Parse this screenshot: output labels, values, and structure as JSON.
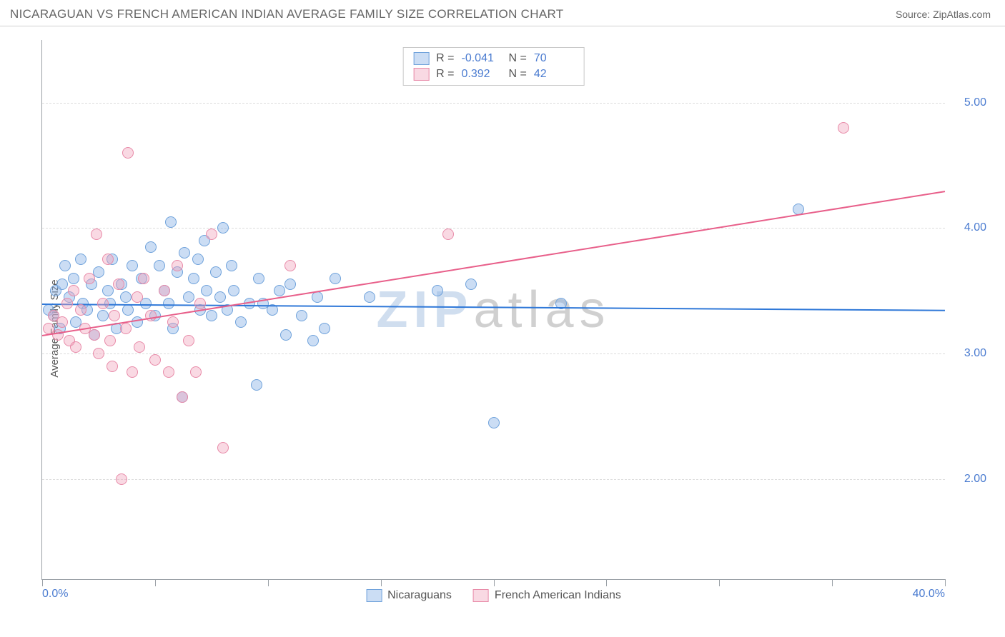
{
  "header": {
    "title": "NICARAGUAN VS FRENCH AMERICAN INDIAN AVERAGE FAMILY SIZE CORRELATION CHART",
    "source": "Source: ZipAtlas.com"
  },
  "chart": {
    "type": "scatter",
    "ylabel": "Average Family Size",
    "label_fontsize": 15,
    "xlim": [
      0,
      40
    ],
    "ylim": [
      1.2,
      5.5
    ],
    "yticks": [
      2.0,
      3.0,
      4.0,
      5.0
    ],
    "ytick_labels": [
      "2.00",
      "3.00",
      "4.00",
      "5.00"
    ],
    "xtick_positions": [
      0,
      5,
      10,
      15,
      20,
      25,
      30,
      35,
      40
    ],
    "xaxis_label_min": "0.0%",
    "xaxis_label_max": "40.0%",
    "background_color": "#ffffff",
    "grid_color": "#dcdcdc",
    "axis_color": "#9aa0a6",
    "tick_label_color": "#4a7bd0",
    "marker_radius": 8,
    "marker_stroke_width": 1.2,
    "series": [
      {
        "name": "Nicaraguans",
        "fill_color": "rgba(140,180,230,0.45)",
        "stroke_color": "#6fa2db",
        "trend_color": "#2f78d8",
        "trend_y_start": 3.4,
        "trend_y_end": 3.35,
        "R": "-0.041",
        "N": "70",
        "points": [
          [
            0.3,
            3.35
          ],
          [
            0.5,
            3.3
          ],
          [
            0.6,
            3.5
          ],
          [
            0.8,
            3.2
          ],
          [
            0.9,
            3.55
          ],
          [
            1.0,
            3.7
          ],
          [
            1.2,
            3.45
          ],
          [
            1.4,
            3.6
          ],
          [
            1.5,
            3.25
          ],
          [
            1.7,
            3.75
          ],
          [
            1.8,
            3.4
          ],
          [
            2.0,
            3.35
          ],
          [
            2.2,
            3.55
          ],
          [
            2.3,
            3.15
          ],
          [
            2.5,
            3.65
          ],
          [
            2.7,
            3.3
          ],
          [
            2.9,
            3.5
          ],
          [
            3.0,
            3.4
          ],
          [
            3.1,
            3.75
          ],
          [
            3.3,
            3.2
          ],
          [
            3.5,
            3.55
          ],
          [
            3.7,
            3.45
          ],
          [
            3.8,
            3.35
          ],
          [
            4.0,
            3.7
          ],
          [
            4.2,
            3.25
          ],
          [
            4.4,
            3.6
          ],
          [
            4.6,
            3.4
          ],
          [
            4.8,
            3.85
          ],
          [
            5.0,
            3.3
          ],
          [
            5.2,
            3.7
          ],
          [
            5.4,
            3.5
          ],
          [
            5.6,
            3.4
          ],
          [
            5.7,
            4.05
          ],
          [
            5.8,
            3.2
          ],
          [
            6.0,
            3.65
          ],
          [
            6.2,
            2.65
          ],
          [
            6.3,
            3.8
          ],
          [
            6.5,
            3.45
          ],
          [
            6.7,
            3.6
          ],
          [
            6.9,
            3.75
          ],
          [
            7.0,
            3.35
          ],
          [
            7.2,
            3.9
          ],
          [
            7.3,
            3.5
          ],
          [
            7.5,
            3.3
          ],
          [
            7.7,
            3.65
          ],
          [
            7.9,
            3.45
          ],
          [
            8.0,
            4.0
          ],
          [
            8.2,
            3.35
          ],
          [
            8.4,
            3.7
          ],
          [
            8.5,
            3.5
          ],
          [
            8.8,
            3.25
          ],
          [
            9.2,
            3.4
          ],
          [
            9.5,
            2.75
          ],
          [
            9.6,
            3.6
          ],
          [
            9.8,
            3.4
          ],
          [
            10.2,
            3.35
          ],
          [
            10.5,
            3.5
          ],
          [
            10.8,
            3.15
          ],
          [
            11.0,
            3.55
          ],
          [
            11.5,
            3.3
          ],
          [
            12.0,
            3.1
          ],
          [
            12.2,
            3.45
          ],
          [
            12.5,
            3.2
          ],
          [
            13.0,
            3.6
          ],
          [
            14.5,
            3.45
          ],
          [
            17.5,
            3.5
          ],
          [
            19.0,
            3.55
          ],
          [
            20.0,
            2.45
          ],
          [
            23.0,
            3.4
          ],
          [
            33.5,
            4.15
          ]
        ]
      },
      {
        "name": "French American Indians",
        "fill_color": "rgba(240,160,185,0.40)",
        "stroke_color": "#e88aa8",
        "trend_color": "#e85f8a",
        "trend_y_start": 3.15,
        "trend_y_end": 4.3,
        "R": "0.392",
        "N": "42",
        "points": [
          [
            0.3,
            3.2
          ],
          [
            0.5,
            3.3
          ],
          [
            0.7,
            3.15
          ],
          [
            0.9,
            3.25
          ],
          [
            1.1,
            3.4
          ],
          [
            1.2,
            3.1
          ],
          [
            1.4,
            3.5
          ],
          [
            1.5,
            3.05
          ],
          [
            1.7,
            3.35
          ],
          [
            1.9,
            3.2
          ],
          [
            2.1,
            3.6
          ],
          [
            2.3,
            3.15
          ],
          [
            2.4,
            3.95
          ],
          [
            2.5,
            3.0
          ],
          [
            2.7,
            3.4
          ],
          [
            2.9,
            3.75
          ],
          [
            3.0,
            3.1
          ],
          [
            3.1,
            2.9
          ],
          [
            3.2,
            3.3
          ],
          [
            3.4,
            3.55
          ],
          [
            3.5,
            2.0
          ],
          [
            3.7,
            3.2
          ],
          [
            3.8,
            4.6
          ],
          [
            4.0,
            2.85
          ],
          [
            4.2,
            3.45
          ],
          [
            4.3,
            3.05
          ],
          [
            4.5,
            3.6
          ],
          [
            4.8,
            3.3
          ],
          [
            5.0,
            2.95
          ],
          [
            5.4,
            3.5
          ],
          [
            5.6,
            2.85
          ],
          [
            5.8,
            3.25
          ],
          [
            6.0,
            3.7
          ],
          [
            6.2,
            2.65
          ],
          [
            6.5,
            3.1
          ],
          [
            6.8,
            2.85
          ],
          [
            7.0,
            3.4
          ],
          [
            7.5,
            3.95
          ],
          [
            8.0,
            2.25
          ],
          [
            11.0,
            3.7
          ],
          [
            18.0,
            3.95
          ],
          [
            35.5,
            4.8
          ]
        ]
      }
    ],
    "stats_box": {
      "rows": [
        {
          "swatch_fill": "rgba(140,180,230,0.45)",
          "swatch_stroke": "#6fa2db",
          "R_label": "R =",
          "R": " -0.041",
          "N_label": "N =",
          "N": "70"
        },
        {
          "swatch_fill": "rgba(240,160,185,0.40)",
          "swatch_stroke": "#e88aa8",
          "R_label": "R =",
          "R": "  0.392",
          "N_label": "N =",
          "N": "42"
        }
      ]
    },
    "watermark": {
      "part1": "ZIP",
      "part2": "atlas"
    },
    "legend": [
      {
        "swatch_fill": "rgba(140,180,230,0.45)",
        "swatch_stroke": "#6fa2db",
        "label": "Nicaraguans"
      },
      {
        "swatch_fill": "rgba(240,160,185,0.40)",
        "swatch_stroke": "#e88aa8",
        "label": "French American Indians"
      }
    ]
  }
}
